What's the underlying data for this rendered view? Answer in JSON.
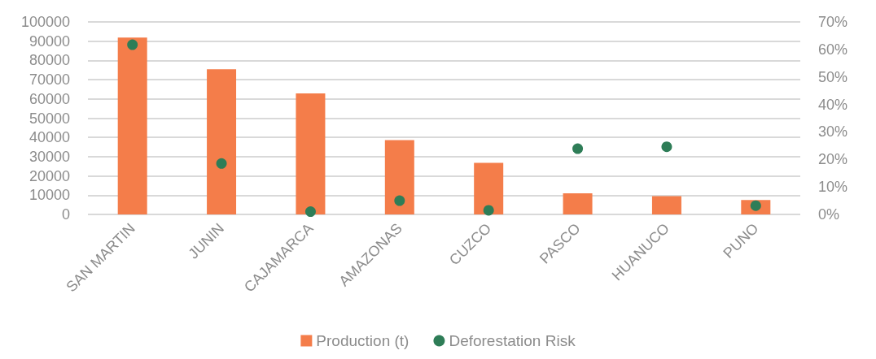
{
  "chart_data": {
    "type": "bar",
    "categories": [
      "SAN MARTIN",
      "JUNIN",
      "CAJAMARCA",
      "AMAZONAS",
      "CUZCO",
      "PASCO",
      "HUANUCO",
      "PUNO"
    ],
    "series": [
      {
        "name": "Production (t)",
        "color": "#f47d4a",
        "values": [
          91900,
          75400,
          62900,
          38600,
          26800,
          11000,
          9500,
          7500
        ]
      },
      {
        "name": "Deforestation Risk",
        "type": "scatter",
        "axis": "y2",
        "color": "#2e7d57",
        "values": [
          61.7,
          18.5,
          1,
          5,
          1.5,
          23.9,
          24.6,
          3.2
        ]
      }
    ],
    "ylim": [
      0,
      100000
    ],
    "yticks": [
      0,
      10000,
      20000,
      30000,
      40000,
      50000,
      60000,
      70000,
      80000,
      90000,
      100000
    ],
    "y2lim": [
      0,
      70
    ],
    "y2ticks": [
      {
        "value": 0,
        "label": "0%"
      },
      {
        "value": 10,
        "label": "10%"
      },
      {
        "value": 20,
        "label": "20%"
      },
      {
        "value": 30,
        "label": "30%"
      },
      {
        "value": 40,
        "label": "40%"
      },
      {
        "value": 50,
        "label": "50%"
      },
      {
        "value": 60,
        "label": "60%"
      },
      {
        "value": 70,
        "label": "70%"
      }
    ],
    "grid": "y",
    "legend": "bottom",
    "marker": "circle"
  }
}
